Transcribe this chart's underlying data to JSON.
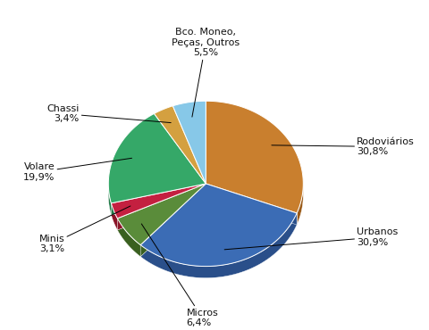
{
  "labels": [
    "Rodoviários",
    "Urbanos",
    "Micros",
    "Minis",
    "Volare",
    "Chassi",
    "Bco. Moneo,\nPeças, Outros"
  ],
  "values": [
    30.8,
    30.9,
    6.4,
    3.1,
    19.9,
    3.4,
    5.5
  ],
  "colors": [
    "#c97f2e",
    "#3b6cb5",
    "#5a8c3a",
    "#c42040",
    "#35a868",
    "#d4a040",
    "#87c8e8"
  ],
  "dark_colors": [
    "#9a5a18",
    "#2a4f8a",
    "#3a6020",
    "#8a1428",
    "#207a48",
    "#a07010",
    "#5090b8"
  ],
  "display_labels": [
    "Rodoviários\n30,8%",
    "Urbanos\n30,9%",
    "Micros\n6,4%",
    "Minis\n3,1%",
    "Volare\n19,9%",
    "Chassi\n3,4%",
    "Bco. Moneo,\nPeças, Outros\n5,5%"
  ],
  "start_angle": 90,
  "figsize": [
    4.8,
    3.7
  ],
  "dpi": 100,
  "background_color": "#ffffff",
  "label_font_size": 8.0,
  "depth": 0.12,
  "label_positions": [
    [
      1.55,
      0.38,
      "left"
    ],
    [
      1.55,
      -0.55,
      "left"
    ],
    [
      -0.2,
      -1.38,
      "left"
    ],
    [
      -1.45,
      -0.62,
      "right"
    ],
    [
      -1.55,
      0.12,
      "right"
    ],
    [
      -1.3,
      0.72,
      "right"
    ],
    [
      0.0,
      1.45,
      "center"
    ]
  ]
}
